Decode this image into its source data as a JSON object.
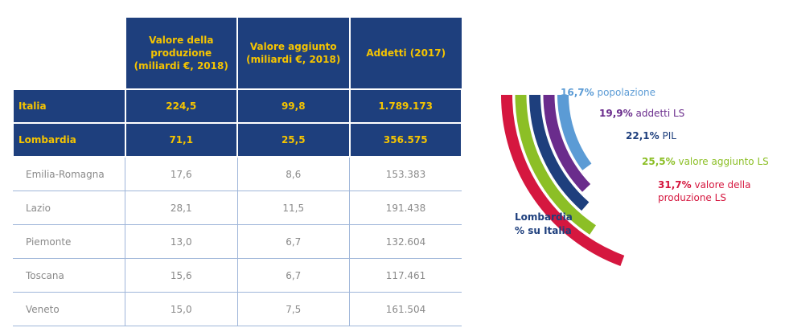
{
  "table": {
    "columns": [
      "Valore della produzione (miliardi €, 2018)",
      "Valore aggiunto (miliardi €, 2018)",
      "Addetti (2017)"
    ],
    "rows": [
      [
        "Italia",
        "224,5",
        "99,8",
        "1.789.173"
      ],
      [
        "Lombardia",
        "71,1",
        "25,5",
        "356.575"
      ],
      [
        "Emilia-Romagna",
        "17,6",
        "8,6",
        "153.383"
      ],
      [
        "Lazio",
        "28,1",
        "11,5",
        "191.438"
      ],
      [
        "Piemonte",
        "13,0",
        "6,7",
        "132.604"
      ],
      [
        "Toscana",
        "15,6",
        "6,7",
        "117.461"
      ],
      [
        "Veneto",
        "15,0",
        "7,5",
        "161.504"
      ]
    ]
  },
  "chart_data": {
    "type": "arc",
    "title": "Lombardia",
    "subtitle": "% su Italia",
    "categories": [
      "popolazione",
      "addetti LS",
      "PIL",
      "valore aggiunto LS",
      "valore della produzione LS"
    ],
    "values": [
      16.7,
      19.9,
      22.1,
      25.5,
      31.7
    ],
    "value_labels": [
      "16,7%",
      "19,9%",
      "22,1%",
      "25,5%",
      "31,7%"
    ],
    "colors": [
      "#5b9bd5",
      "#6a2c8c",
      "#1e3f7d",
      "#8cbf26",
      "#d5173f"
    ]
  }
}
